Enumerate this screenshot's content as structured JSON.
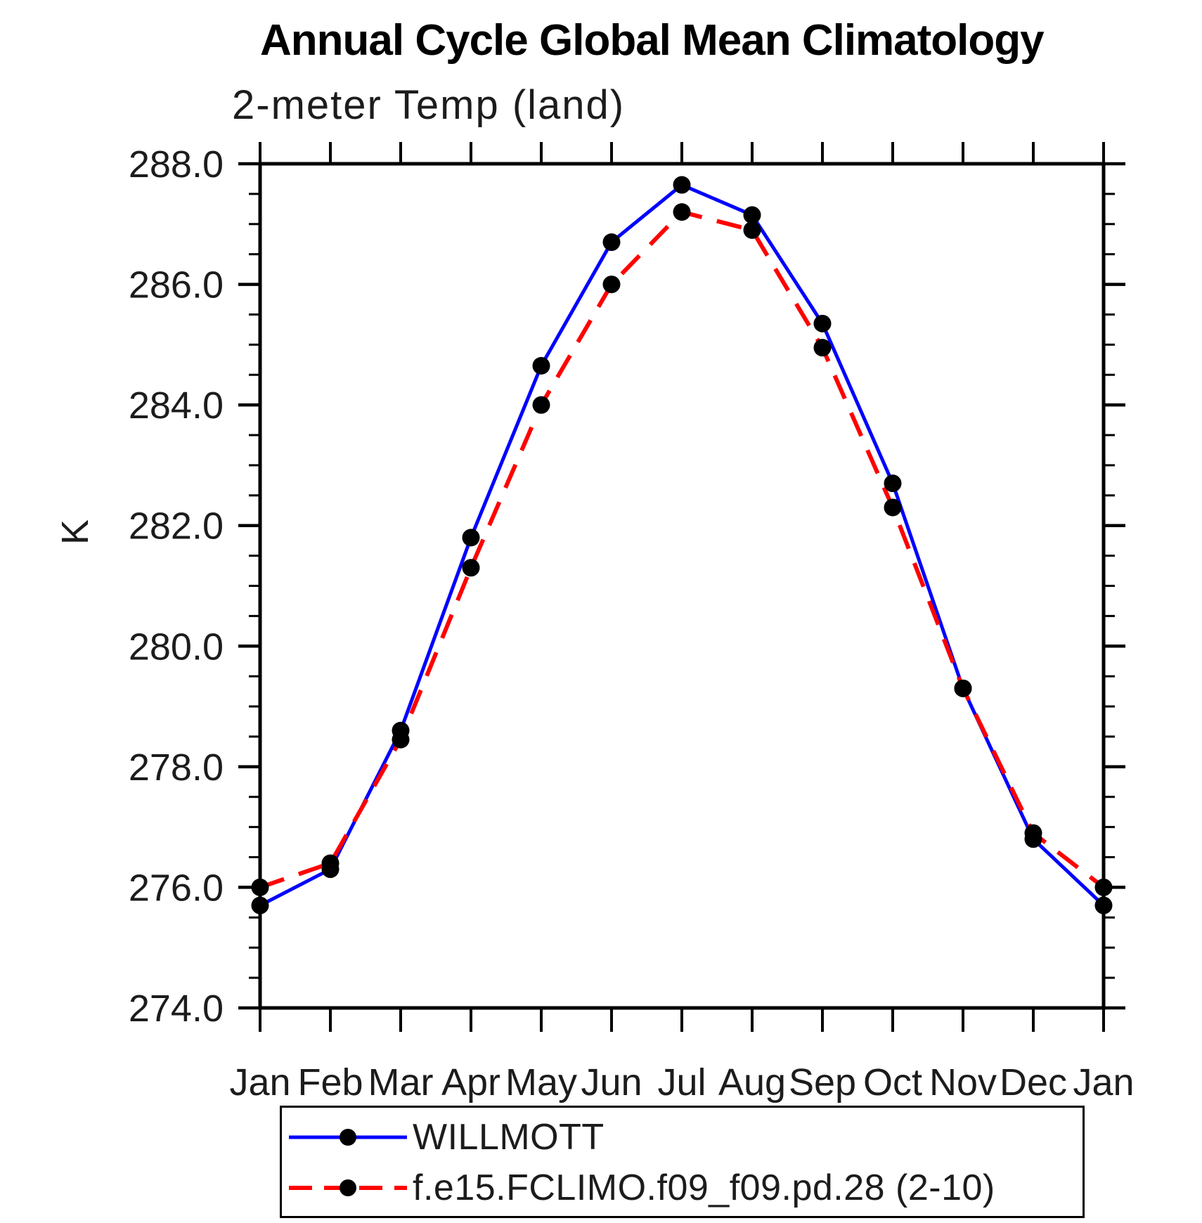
{
  "chart_data": {
    "type": "line",
    "title": "Annual Cycle Global Mean Climatology",
    "subtitle": "2-meter Temp (land)",
    "xlabel": "",
    "ylabel": "K",
    "categories": [
      "Jan",
      "Feb",
      "Mar",
      "Apr",
      "May",
      "Jun",
      "Jul",
      "Aug",
      "Sep",
      "Oct",
      "Nov",
      "Dec",
      "Jan"
    ],
    "ylim": [
      274.0,
      288.0
    ],
    "ytick_step_major": 2.0,
    "ytick_step_minor": 0.5,
    "ytick_labels": [
      "274.0",
      "276.0",
      "278.0",
      "280.0",
      "282.0",
      "284.0",
      "286.0",
      "288.0"
    ],
    "grid": false,
    "legend_position": "bottom-left-box",
    "axis_color": "#000000",
    "marker_color": "#000000",
    "series": [
      {
        "name": "WILLMOTT",
        "color": "#0000ff",
        "line_style": "solid",
        "marker": "filled-circle",
        "values": [
          275.7,
          276.3,
          278.6,
          281.8,
          284.65,
          286.7,
          287.65,
          287.15,
          285.35,
          282.7,
          279.3,
          276.8,
          275.7
        ]
      },
      {
        "name": "f.e15.FCLIMO.f09_f09.pd.28 (2-10)",
        "color": "#ff0000",
        "line_style": "dashed",
        "marker": "filled-circle",
        "values": [
          276.0,
          276.4,
          278.45,
          281.3,
          284.0,
          286.0,
          287.2,
          286.9,
          284.95,
          282.3,
          279.3,
          276.9,
          276.0
        ]
      }
    ]
  }
}
